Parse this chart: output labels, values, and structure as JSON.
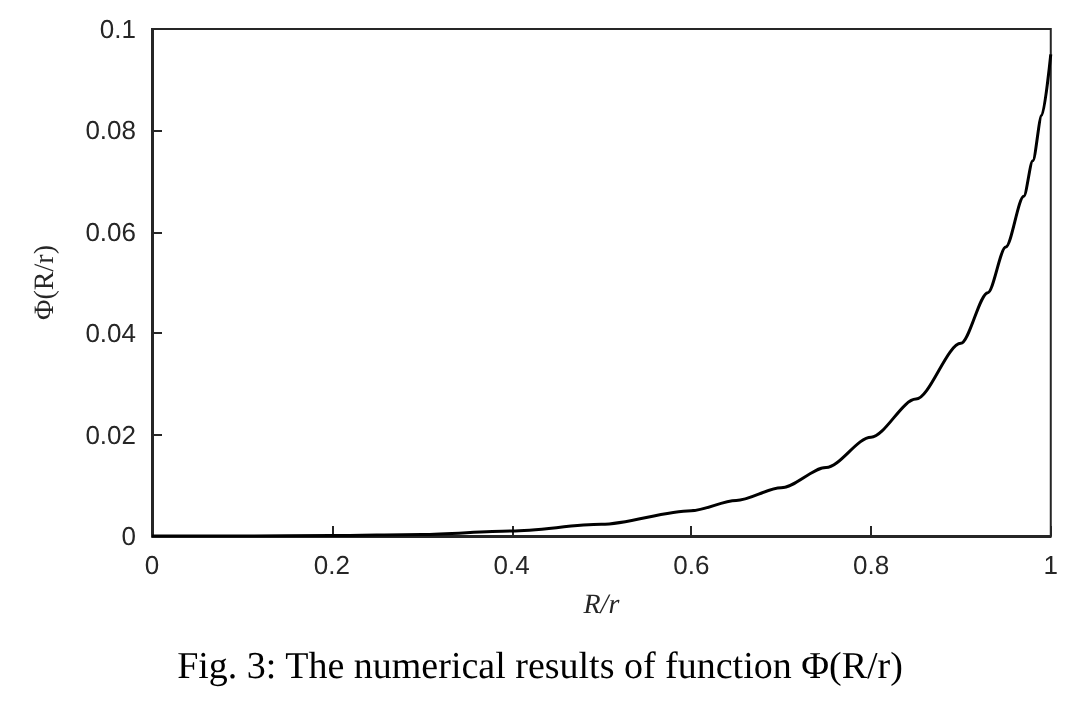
{
  "chart_data": {
    "type": "line",
    "xlabel": "R/r",
    "ylabel": "Φ(R/r)",
    "annotations": [
      "Fig. 3: The numerical results of function Φ(R/r)"
    ],
    "series": [
      {
        "color": "#000000",
        "x": [
          0,
          0.1,
          0.2,
          0.3,
          0.4,
          0.5,
          0.6,
          0.65,
          0.7,
          0.75,
          0.8,
          0.85,
          0.9,
          0.93,
          0.95,
          0.97,
          0.98,
          0.99,
          1.0
        ],
        "values": [
          0,
          0,
          0.0001,
          0.0003,
          0.001,
          0.0023,
          0.005,
          0.007,
          0.0095,
          0.0135,
          0.0195,
          0.027,
          0.038,
          0.048,
          0.057,
          0.067,
          0.074,
          0.083,
          0.095
        ]
      }
    ],
    "xlim": [
      0,
      1
    ],
    "xticks": [
      0,
      0.2,
      0.4,
      0.6,
      0.8,
      1
    ],
    "ylim": [
      0,
      0.1
    ],
    "yticks": [
      0,
      0.02,
      0.04,
      0.06,
      0.08,
      0.1
    ],
    "grid": false,
    "marker": "none",
    "line_style": "solid"
  }
}
